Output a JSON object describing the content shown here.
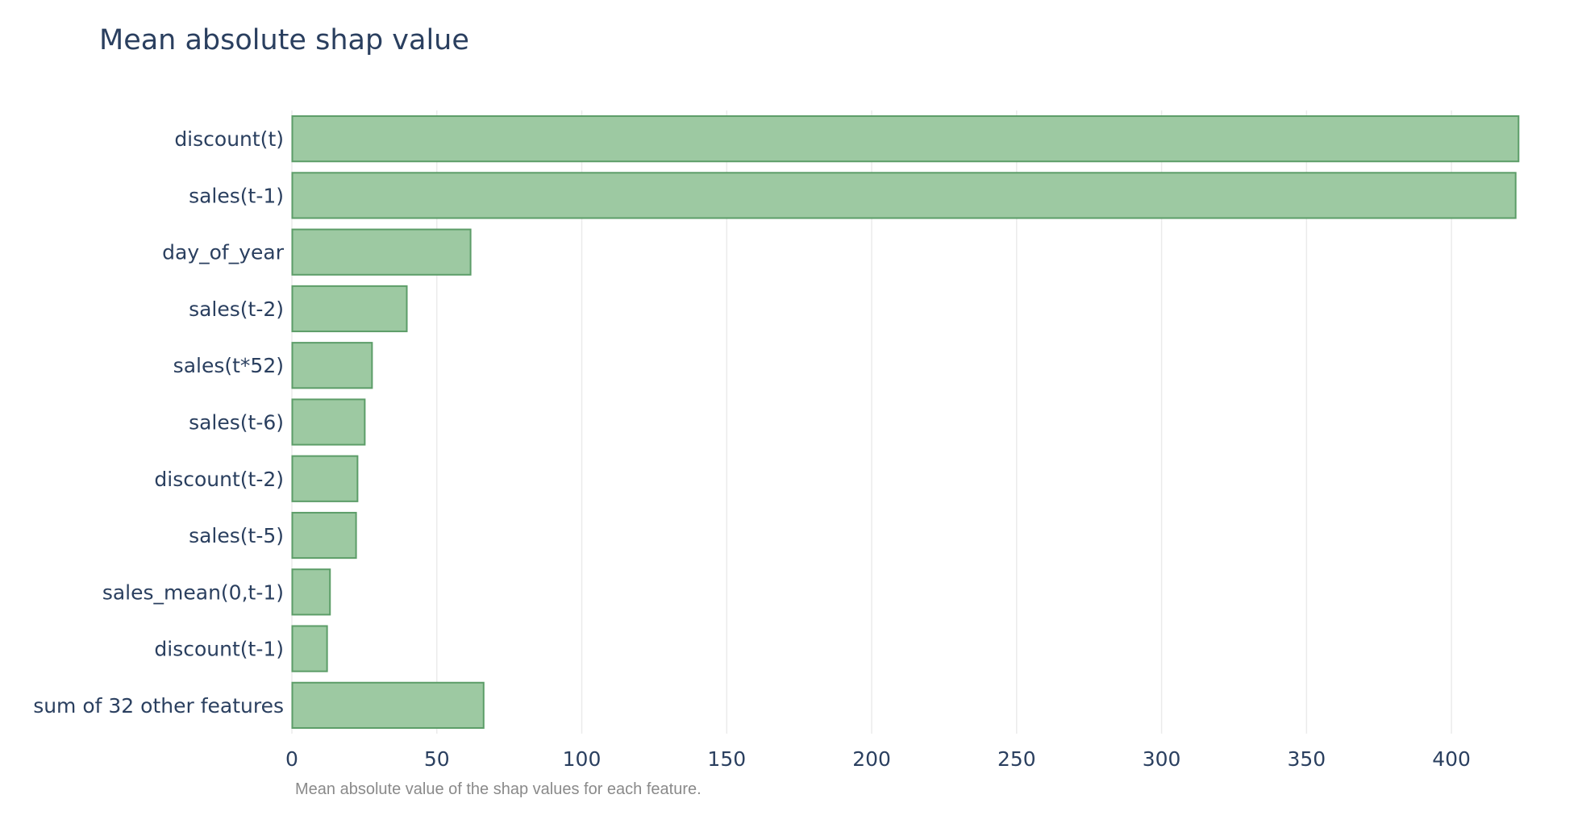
{
  "chart_data": {
    "type": "bar",
    "orientation": "horizontal",
    "title": "Mean absolute shap value",
    "caption": "Mean absolute value of the shap values for each feature.",
    "categories": [
      "discount(t)",
      "sales(t-1)",
      "day_of_year",
      "sales(t-2)",
      "sales(t*52)",
      "sales(t-6)",
      "discount(t-2)",
      "sales(t-5)",
      "sales_mean(0,t-1)",
      "discount(t-1)",
      "sum of 32 other features"
    ],
    "values": [
      423,
      422,
      61.5,
      39.5,
      27.5,
      25,
      22.5,
      22,
      13,
      12,
      66
    ],
    "xlim": [
      0,
      425
    ],
    "x_ticks": [
      0,
      50,
      100,
      150,
      200,
      250,
      300,
      350,
      400
    ],
    "grid": true,
    "bar_fill": "#9dc9a2",
    "bar_stroke": "#5c9d68",
    "grid_color": "#ebebeb",
    "text_color": "#2a3f5f"
  }
}
